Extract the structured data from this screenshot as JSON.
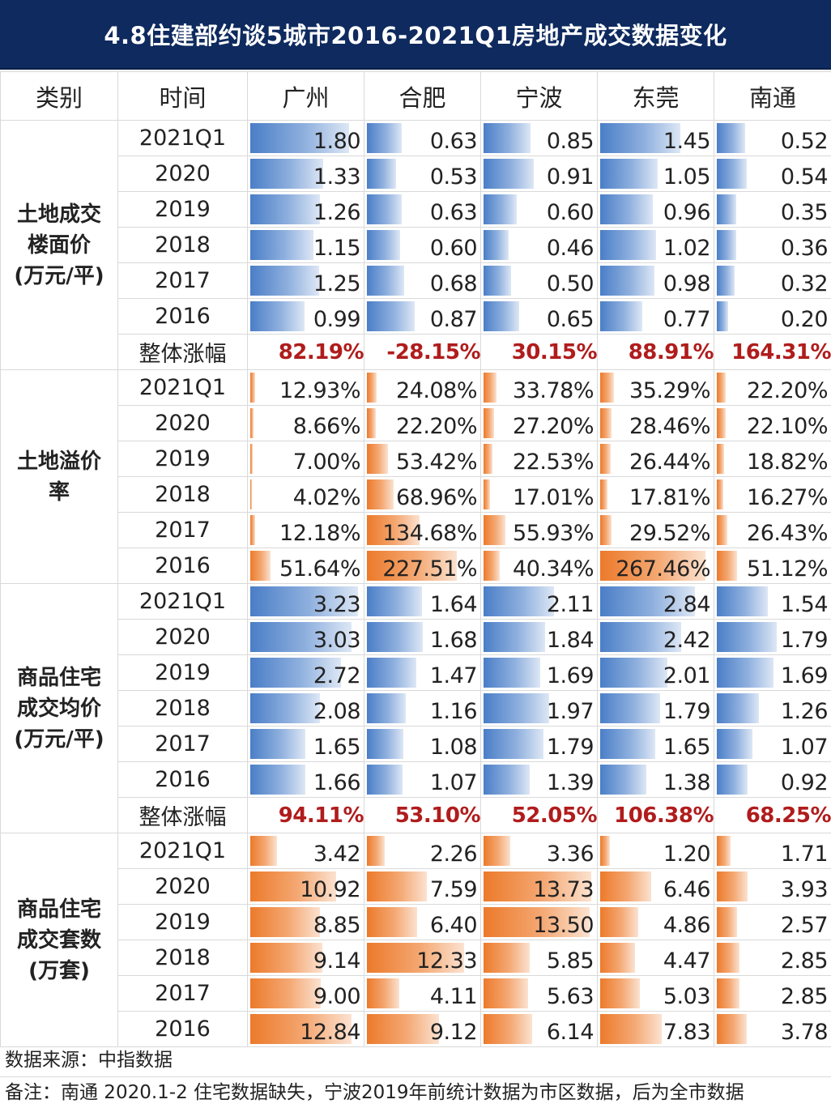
{
  "chart_data": {
    "type": "table",
    "title": "4.8住建部约谈5城市2016-2021Q1房地产成交数据变化",
    "columns": [
      "类别",
      "时间",
      "广州",
      "合肥",
      "宁波",
      "东莞",
      "南通"
    ],
    "cities": [
      "广州",
      "合肥",
      "宁波",
      "东莞",
      "南通"
    ],
    "growth_label": "整体涨幅",
    "sections": [
      {
        "category": "土地成交\n楼面价\n(万元/平)",
        "bar_color": "blue",
        "bar_max": 2.0,
        "rows": [
          {
            "period": "2021Q1",
            "values": [
              1.8,
              0.63,
              0.85,
              1.45,
              0.52
            ],
            "labels": [
              "1.80",
              "0.63",
              "0.85",
              "1.45",
              "0.52"
            ]
          },
          {
            "period": "2020",
            "values": [
              1.33,
              0.53,
              0.91,
              1.05,
              0.54
            ],
            "labels": [
              "1.33",
              "0.53",
              "0.91",
              "1.05",
              "0.54"
            ]
          },
          {
            "period": "2019",
            "values": [
              1.26,
              0.63,
              0.6,
              0.96,
              0.35
            ],
            "labels": [
              "1.26",
              "0.63",
              "0.60",
              "0.96",
              "0.35"
            ]
          },
          {
            "period": "2018",
            "values": [
              1.15,
              0.6,
              0.46,
              1.02,
              0.36
            ],
            "labels": [
              "1.15",
              "0.60",
              "0.46",
              "1.02",
              "0.36"
            ]
          },
          {
            "period": "2017",
            "values": [
              1.25,
              0.68,
              0.5,
              0.98,
              0.32
            ],
            "labels": [
              "1.25",
              "0.68",
              "0.50",
              "0.98",
              "0.32"
            ]
          },
          {
            "period": "2016",
            "values": [
              0.99,
              0.87,
              0.65,
              0.77,
              0.2
            ],
            "labels": [
              "0.99",
              "0.87",
              "0.65",
              "0.77",
              "0.20"
            ]
          }
        ],
        "growth": [
          "82.19%",
          "-28.15%",
          "30.15%",
          "88.91%",
          "164.31%"
        ]
      },
      {
        "category": "土地溢价\n率",
        "bar_color": "orange",
        "bar_max": 280,
        "rows": [
          {
            "period": "2021Q1",
            "values": [
              12.93,
              24.08,
              33.78,
              35.29,
              22.2
            ],
            "labels": [
              "12.93%",
              "24.08%",
              "33.78%",
              "35.29%",
              "22.20%"
            ]
          },
          {
            "period": "2020",
            "values": [
              8.66,
              22.2,
              27.2,
              28.46,
              22.1
            ],
            "labels": [
              "8.66%",
              "22.20%",
              "27.20%",
              "28.46%",
              "22.10%"
            ]
          },
          {
            "period": "2019",
            "values": [
              7.0,
              53.42,
              22.53,
              26.44,
              18.82
            ],
            "labels": [
              "7.00%",
              "53.42%",
              "22.53%",
              "26.44%",
              "18.82%"
            ]
          },
          {
            "period": "2018",
            "values": [
              4.02,
              68.96,
              17.01,
              17.81,
              16.27
            ],
            "labels": [
              "4.02%",
              "68.96%",
              "17.01%",
              "17.81%",
              "16.27%"
            ]
          },
          {
            "period": "2017",
            "values": [
              12.18,
              134.68,
              55.93,
              29.52,
              26.43
            ],
            "labels": [
              "12.18%",
              "134.68%",
              "55.93%",
              "29.52%",
              "26.43%"
            ]
          },
          {
            "period": "2016",
            "values": [
              51.64,
              227.51,
              40.34,
              267.46,
              51.12
            ],
            "labels": [
              "51.64%",
              "227.51%",
              "40.34%",
              "267.46%",
              "51.12%"
            ]
          }
        ],
        "growth": null
      },
      {
        "category": "商品住宅\n成交均价\n(万元/平)",
        "bar_color": "blue",
        "bar_max": 3.3,
        "rows": [
          {
            "period": "2021Q1",
            "values": [
              3.23,
              1.64,
              2.11,
              2.84,
              1.54
            ],
            "labels": [
              "3.23",
              "1.64",
              "2.11",
              "2.84",
              "1.54"
            ]
          },
          {
            "period": "2020",
            "values": [
              3.03,
              1.68,
              1.84,
              2.42,
              1.79
            ],
            "labels": [
              "3.03",
              "1.68",
              "1.84",
              "2.42",
              "1.79"
            ]
          },
          {
            "period": "2019",
            "values": [
              2.72,
              1.47,
              1.69,
              2.01,
              1.69
            ],
            "labels": [
              "2.72",
              "1.47",
              "1.69",
              "2.01",
              "1.69"
            ]
          },
          {
            "period": "2018",
            "values": [
              2.08,
              1.16,
              1.97,
              1.79,
              1.26
            ],
            "labels": [
              "2.08",
              "1.16",
              "1.97",
              "1.79",
              "1.26"
            ]
          },
          {
            "period": "2017",
            "values": [
              1.65,
              1.08,
              1.79,
              1.65,
              1.07
            ],
            "labels": [
              "1.65",
              "1.08",
              "1.79",
              "1.65",
              "1.07"
            ]
          },
          {
            "period": "2016",
            "values": [
              1.66,
              1.07,
              1.39,
              1.38,
              0.92
            ],
            "labels": [
              "1.66",
              "1.07",
              "1.39",
              "1.38",
              "0.92"
            ]
          }
        ],
        "growth": [
          "94.11%",
          "53.10%",
          "52.05%",
          "106.38%",
          "68.25%"
        ]
      },
      {
        "category": "商品住宅\n成交套数\n(万套)",
        "bar_color": "orange",
        "bar_max": 14.0,
        "rows": [
          {
            "period": "2021Q1",
            "values": [
              3.42,
              2.26,
              3.36,
              1.2,
              1.71
            ],
            "labels": [
              "3.42",
              "2.26",
              "3.36",
              "1.20",
              "1.71"
            ]
          },
          {
            "period": "2020",
            "values": [
              10.92,
              7.59,
              13.73,
              6.46,
              3.93
            ],
            "labels": [
              "10.92",
              "7.59",
              "13.73",
              "6.46",
              "3.93"
            ]
          },
          {
            "period": "2019",
            "values": [
              8.85,
              6.4,
              13.5,
              4.86,
              2.57
            ],
            "labels": [
              "8.85",
              "6.40",
              "13.50",
              "4.86",
              "2.57"
            ]
          },
          {
            "period": "2018",
            "values": [
              9.14,
              12.33,
              5.85,
              4.47,
              2.85
            ],
            "labels": [
              "9.14",
              "12.33",
              "5.85",
              "4.47",
              "2.85"
            ]
          },
          {
            "period": "2017",
            "values": [
              9.0,
              4.11,
              5.63,
              5.03,
              2.85
            ],
            "labels": [
              "9.00",
              "4.11",
              "5.63",
              "5.03",
              "2.85"
            ]
          },
          {
            "period": "2016",
            "values": [
              12.84,
              9.12,
              6.14,
              7.83,
              3.78
            ],
            "labels": [
              "12.84",
              "9.12",
              "6.14",
              "7.83",
              "3.78"
            ]
          }
        ],
        "growth": null
      }
    ]
  },
  "colors": {
    "title_bg": "#0e2a5e",
    "blue_bar": "#4a7ec7",
    "orange_bar": "#ec7a2b",
    "growth_text": "#b01c1c"
  },
  "footnotes": {
    "source": "数据来源：中指数据",
    "note": "备注：南通 2020.1-2 住宅数据缺失，宁波2019年前统计数据为市区数据，后为全市数据"
  }
}
